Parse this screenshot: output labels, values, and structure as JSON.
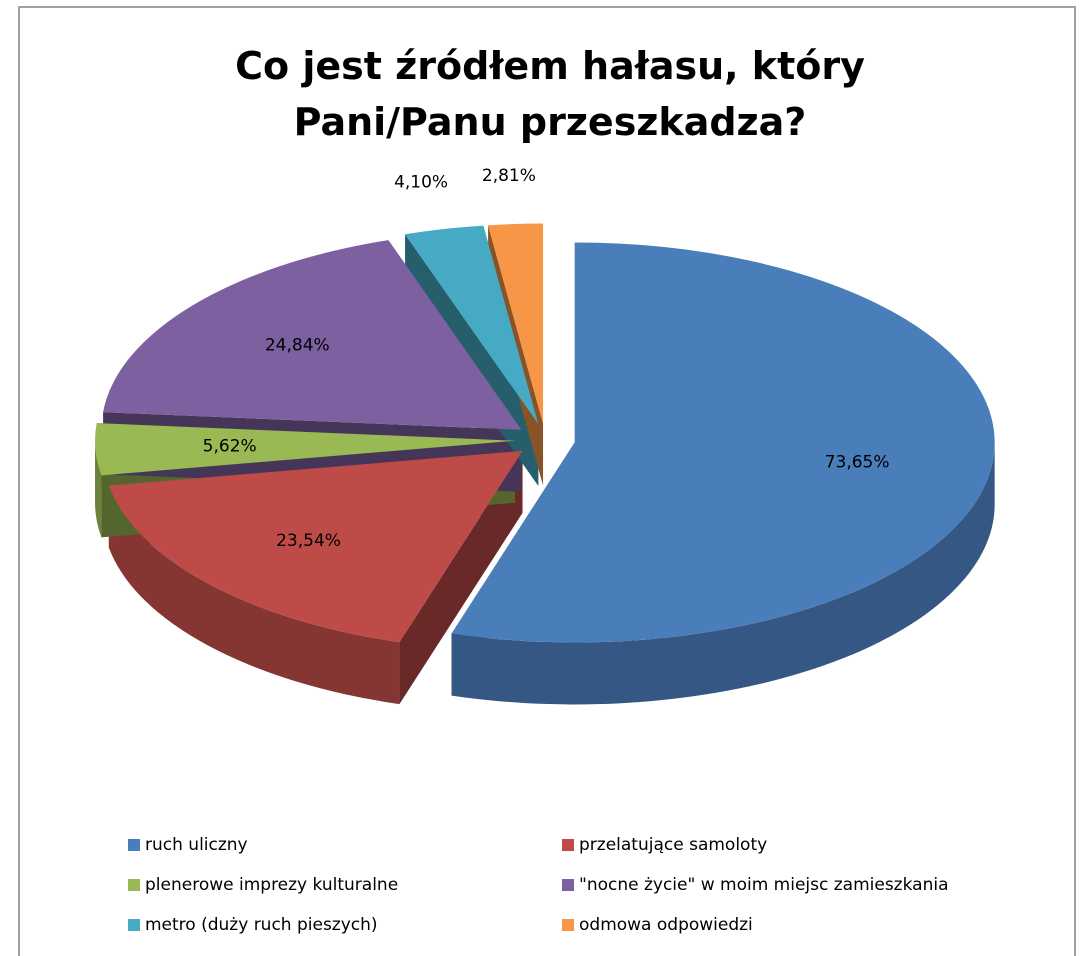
{
  "chart_data": {
    "type": "pie",
    "title": "Co jest źródłem hałasu, który Pani/Panu przeszkadza?",
    "categories": [
      "ruch uliczny",
      "przelatujące samoloty",
      "plenerowe imprezy kulturalne",
      "\"nocne życie\" w moim miejsc zamieszkania",
      "metro (duży ruch pieszych)",
      "odmowa odpowiedzi"
    ],
    "values": [
      73.65,
      23.54,
      5.62,
      24.84,
      4.1,
      2.81
    ],
    "value_labels": [
      "73,65%",
      "23,54%",
      "5,62%",
      "24,84%",
      "4,10%",
      "2,81%"
    ],
    "colors": [
      "#4a7ebb",
      "#be4b48",
      "#98b954",
      "#7d60a0",
      "#46aac5",
      "#f79646"
    ],
    "legend": "bottom"
  }
}
